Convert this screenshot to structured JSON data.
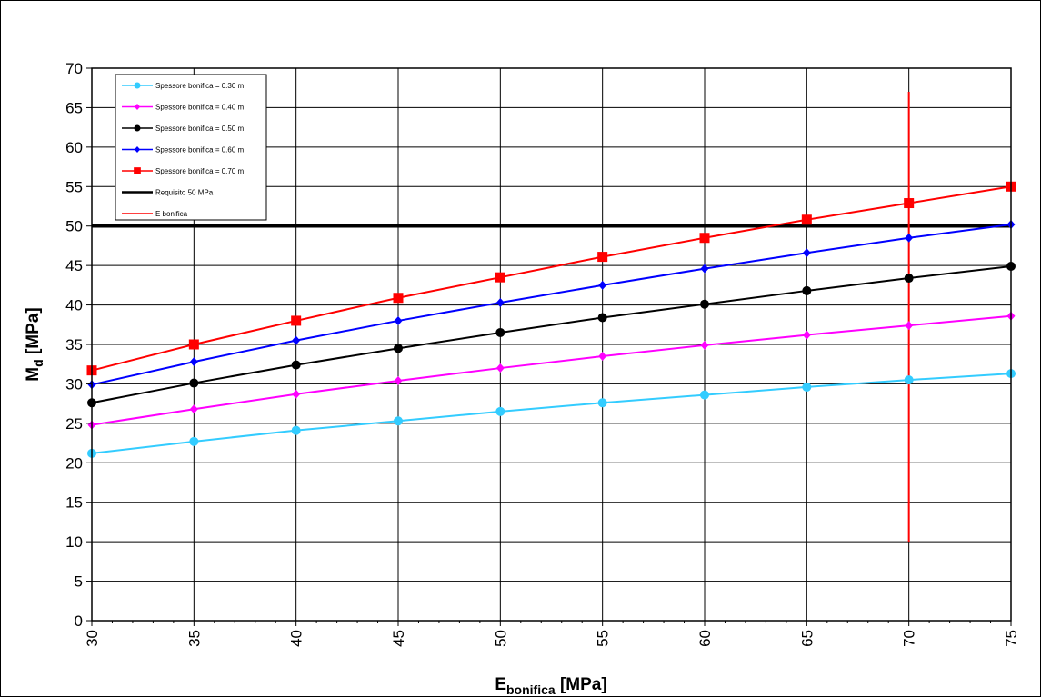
{
  "chart_data": {
    "type": "line",
    "title": "",
    "xlabel_main": "E",
    "xlabel_sub": "bonifica",
    "xlabel_unit": " [MPa]",
    "ylabel_main": "M",
    "ylabel_sub": "d",
    "ylabel_unit": " [MPa]",
    "xlim": [
      30,
      75
    ],
    "ylim": [
      0,
      70
    ],
    "xticks": [
      30,
      35,
      40,
      45,
      50,
      55,
      60,
      65,
      70,
      75
    ],
    "yticks": [
      0,
      5,
      10,
      15,
      20,
      25,
      30,
      35,
      40,
      45,
      50,
      55,
      60,
      65,
      70
    ],
    "grid": true,
    "legend_position": "top-left",
    "x": [
      30,
      35,
      40,
      45,
      50,
      55,
      60,
      65,
      70,
      75
    ],
    "series": [
      {
        "name": "Spessore bonifica = 0.30  m",
        "color": "#33ccff",
        "marker": "circle",
        "values": [
          21.2,
          22.7,
          24.1,
          25.3,
          26.5,
          27.6,
          28.6,
          29.6,
          30.5,
          31.3
        ]
      },
      {
        "name": "Spessore bonifica = 0.40  m",
        "color": "#ff00ff",
        "marker": "diamond",
        "values": [
          24.8,
          26.8,
          28.7,
          30.4,
          32.0,
          33.5,
          34.9,
          36.2,
          37.4,
          38.6
        ]
      },
      {
        "name": "Spessore bonifica = 0.50  m",
        "color": "#000000",
        "marker": "circle",
        "values": [
          27.6,
          30.1,
          32.4,
          34.5,
          36.5,
          38.4,
          40.1,
          41.8,
          43.4,
          44.9
        ]
      },
      {
        "name": "Spessore bonifica = 0.60  m",
        "color": "#0000ff",
        "marker": "diamond",
        "values": [
          29.9,
          32.8,
          35.5,
          38.0,
          40.3,
          42.5,
          44.6,
          46.6,
          48.5,
          50.2
        ]
      },
      {
        "name": "Spessore bonifica = 0.70  m",
        "color": "#ff0000",
        "marker": "square",
        "values": [
          31.7,
          35.0,
          38.0,
          40.9,
          43.5,
          46.1,
          48.5,
          50.8,
          52.9,
          55.0
        ]
      },
      {
        "name": "Requisito 50 MPa",
        "color": "#000000",
        "marker": "none",
        "line_width": "thick",
        "points": [
          [
            30,
            50
          ],
          [
            75,
            50
          ]
        ]
      },
      {
        "name": "E bonifica",
        "color": "#ff0000",
        "marker": "none",
        "points": [
          [
            70,
            10
          ],
          [
            70,
            67
          ]
        ]
      }
    ]
  }
}
